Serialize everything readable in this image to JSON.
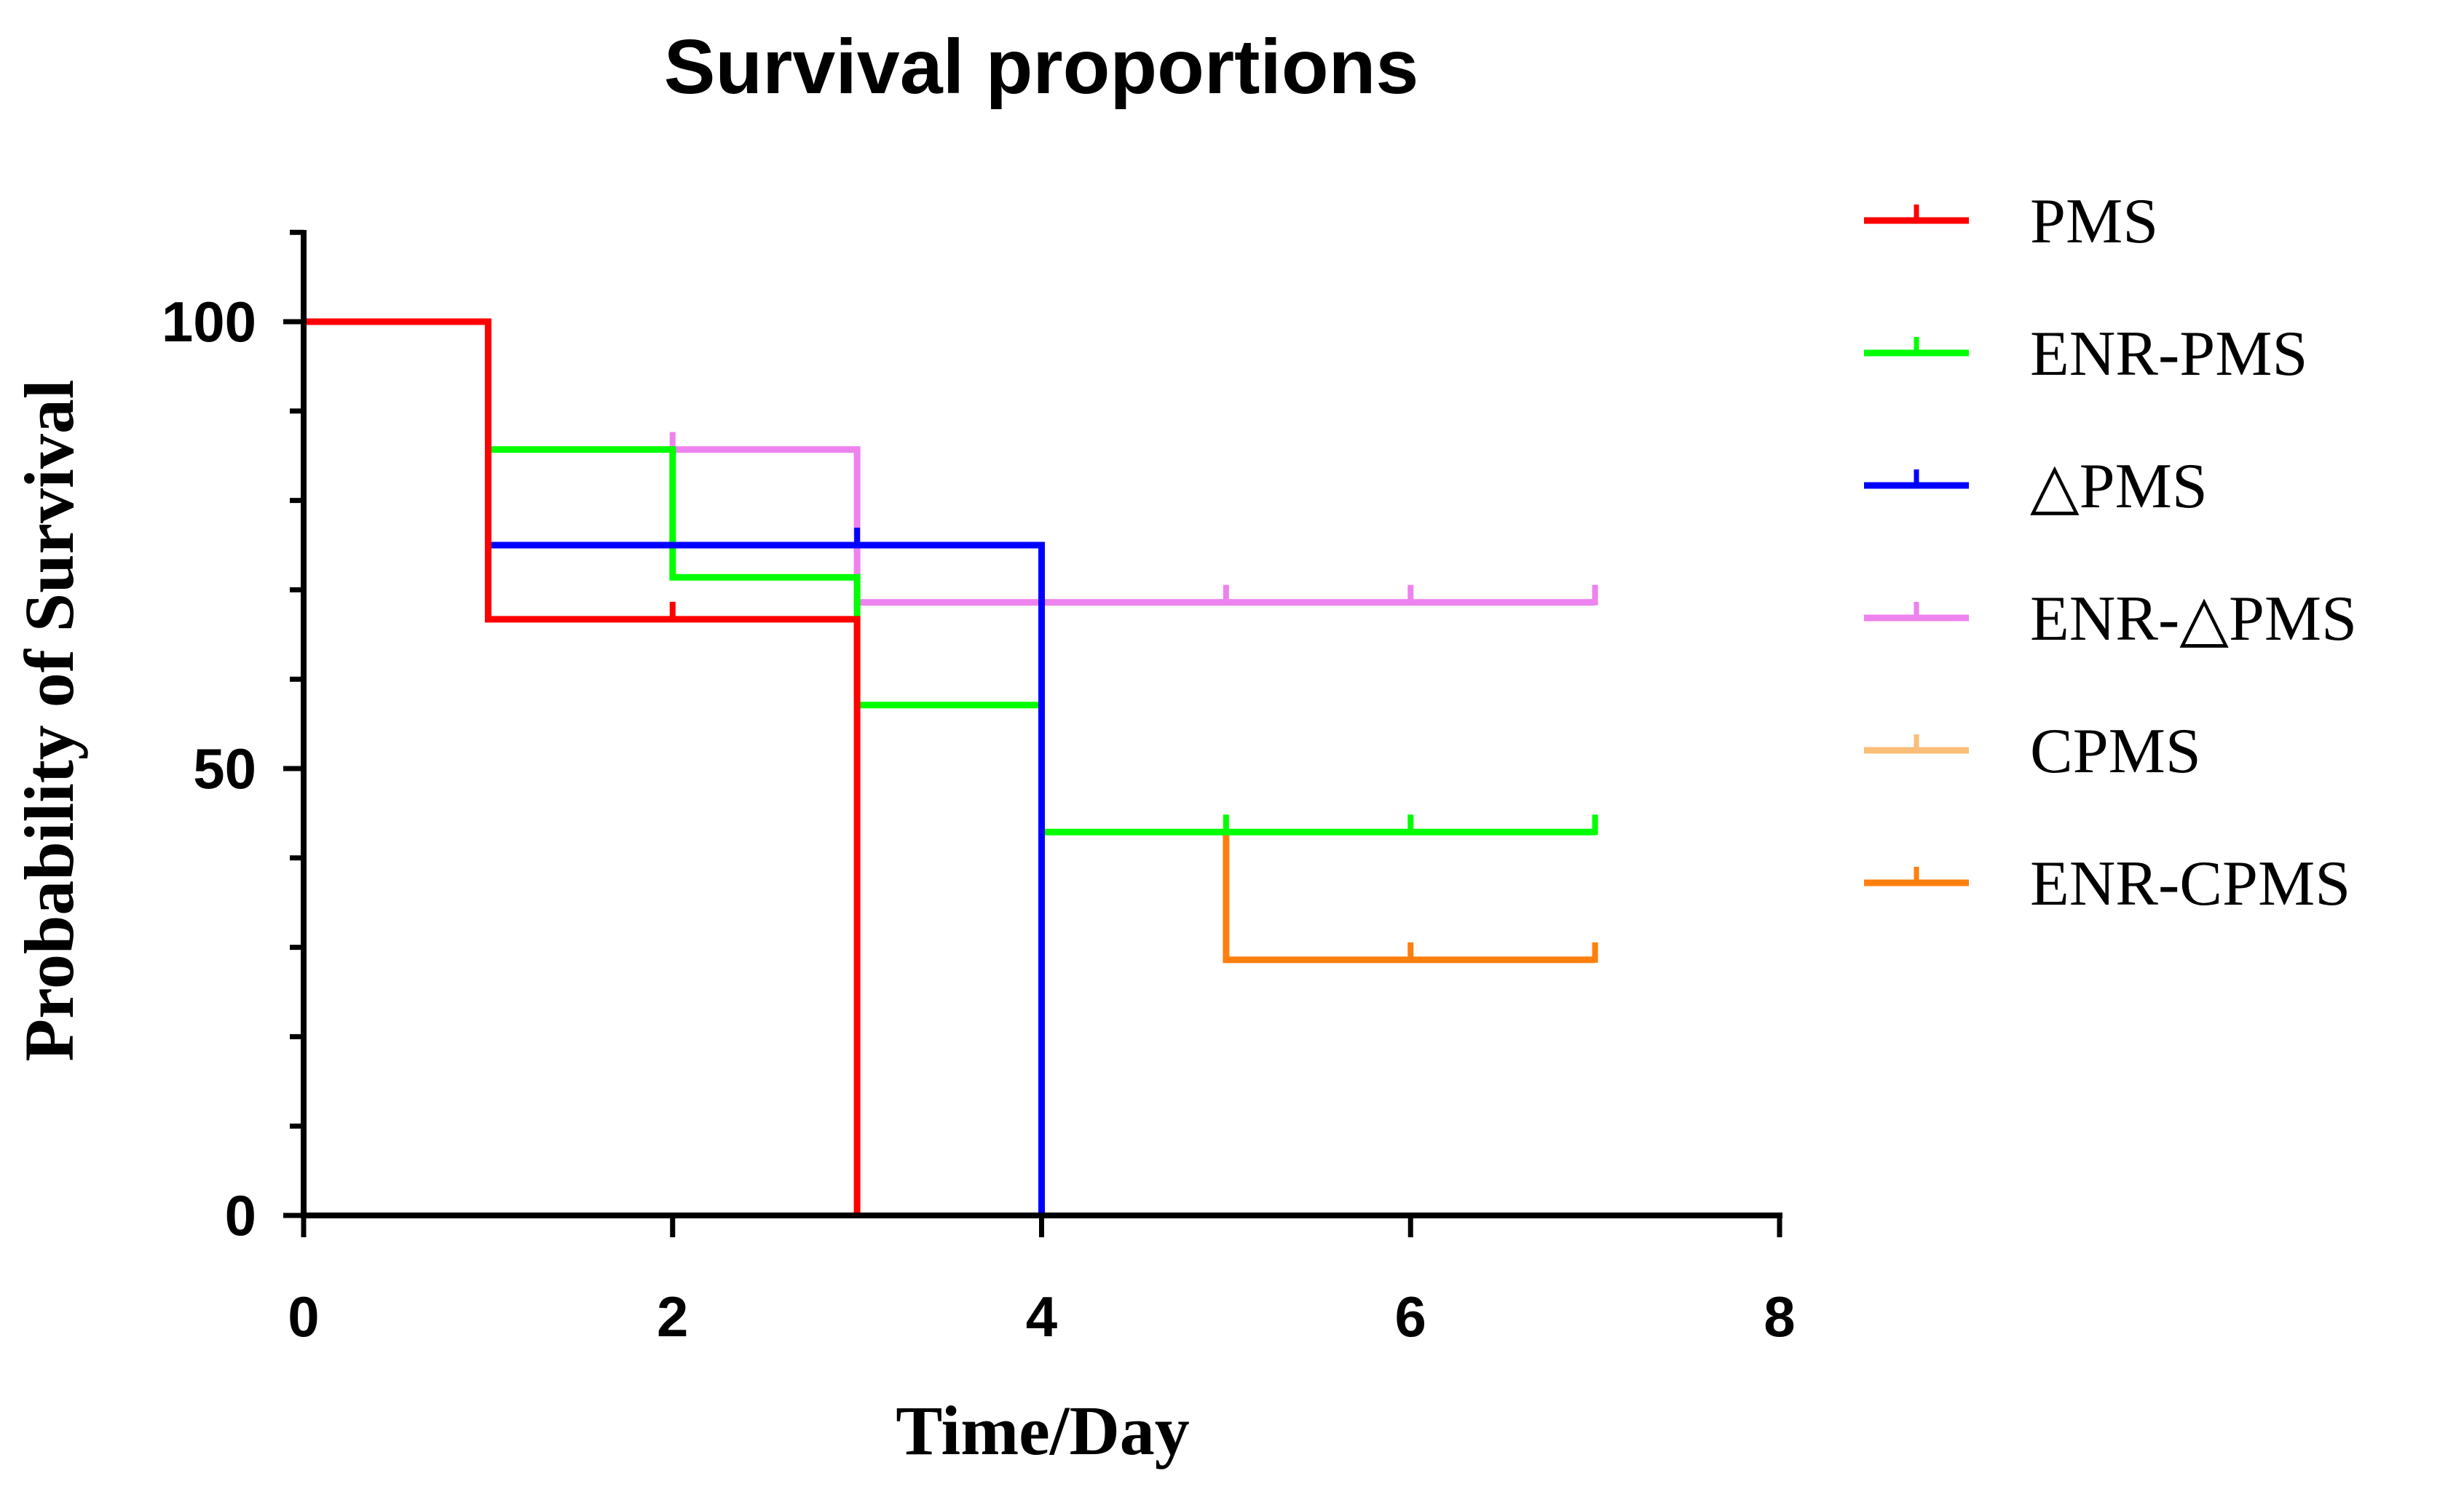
{
  "chart_data": {
    "type": "line",
    "subtype": "kaplan-meier step",
    "title": "Survival proportions",
    "xlabel": "Time/Day",
    "ylabel": "Probability of Survival",
    "xlim": [
      0,
      8
    ],
    "ylim": [
      0,
      110
    ],
    "x_ticks": [
      0,
      2,
      4,
      6,
      8
    ],
    "y_ticks": [
      0,
      50,
      100
    ],
    "grid": false,
    "legend_position": "right",
    "series": [
      {
        "name": "PMS",
        "color": "#ff0000",
        "steps": [
          [
            0,
            100
          ],
          [
            1,
            100
          ],
          [
            1,
            66.7
          ],
          [
            3,
            66.7
          ],
          [
            3,
            0
          ]
        ],
        "censors": [
          [
            2,
            66.7
          ]
        ]
      },
      {
        "name": "ENR-PMS",
        "color": "#00ff00",
        "steps": [
          [
            1,
            85.7
          ],
          [
            2,
            85.7
          ],
          [
            2,
            71.4
          ],
          [
            3,
            71.4
          ],
          [
            3,
            57.1
          ],
          [
            4,
            57.1
          ],
          [
            4,
            42.9
          ],
          [
            7,
            42.9
          ]
        ],
        "censors": [
          [
            5,
            42.9
          ],
          [
            6,
            42.9
          ],
          [
            7,
            42.9
          ]
        ]
      },
      {
        "name": "△PMS",
        "color": "#0000ff",
        "steps": [
          [
            1,
            75
          ],
          [
            4,
            75
          ],
          [
            4,
            0
          ]
        ],
        "censors": [
          [
            3,
            75
          ]
        ]
      },
      {
        "name": "ENR-△PMS",
        "color": "#ee82ee",
        "steps": [
          [
            2,
            85.7
          ],
          [
            3,
            85.7
          ],
          [
            3,
            68.6
          ],
          [
            7,
            68.6
          ]
        ],
        "censors": [
          [
            2,
            85.7
          ],
          [
            5,
            68.6
          ],
          [
            6,
            68.6
          ],
          [
            7,
            68.6
          ]
        ]
      },
      {
        "name": "CPMS",
        "color": "#f9be78",
        "steps": [],
        "censors": []
      },
      {
        "name": "ENR-CPMS",
        "color": "#ff7f0e",
        "steps": [
          [
            5,
            42.9
          ],
          [
            5,
            28.6
          ],
          [
            7,
            28.6
          ]
        ],
        "censors": [
          [
            6,
            28.6
          ],
          [
            7,
            28.6
          ]
        ]
      }
    ]
  }
}
